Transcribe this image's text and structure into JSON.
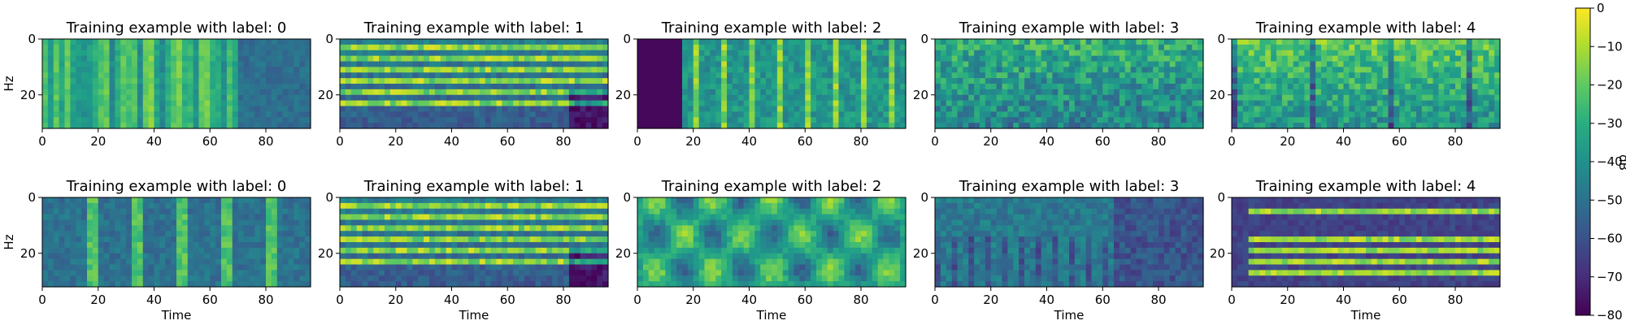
{
  "figure": {
    "colorbar": {
      "label": "dB",
      "ticks": [
        0,
        -10,
        -20,
        -30,
        -40,
        -50,
        -60,
        -70,
        -80
      ],
      "range": [
        -80,
        0
      ],
      "colormap": "viridis"
    }
  },
  "chart_data": [
    {
      "type": "heatmap",
      "title": "Training example with label: 0",
      "ylabel": "Hz",
      "xlabel": "",
      "x_ticks": [
        "0",
        "20",
        "40",
        "60",
        "80"
      ],
      "y_ticks": [
        "0",
        "20"
      ],
      "xlim": [
        0,
        96
      ],
      "ylim": [
        32,
        0
      ],
      "pattern": "broadband"
    },
    {
      "type": "heatmap",
      "title": "Training example with label: 1",
      "ylabel": "",
      "xlabel": "",
      "x_ticks": [
        "0",
        "20",
        "40",
        "60",
        "80"
      ],
      "y_ticks": [
        "0",
        "20"
      ],
      "xlim": [
        0,
        96
      ],
      "ylim": [
        32,
        0
      ],
      "pattern": "tonal"
    },
    {
      "type": "heatmap",
      "title": "Training example with label: 2",
      "ylabel": "",
      "xlabel": "",
      "x_ticks": [
        "0",
        "20",
        "40",
        "60",
        "80"
      ],
      "y_ticks": [
        "0",
        "20"
      ],
      "xlim": [
        0,
        96
      ],
      "ylim": [
        32,
        0
      ],
      "pattern": "silent-start"
    },
    {
      "type": "heatmap",
      "title": "Training example with label: 3",
      "ylabel": "",
      "xlabel": "",
      "x_ticks": [
        "0",
        "20",
        "40",
        "60",
        "80"
      ],
      "y_ticks": [
        "0",
        "20"
      ],
      "xlim": [
        0,
        96
      ],
      "ylim": [
        32,
        0
      ],
      "pattern": "noisy"
    },
    {
      "type": "heatmap",
      "title": "Training example with label: 4",
      "ylabel": "",
      "xlabel": "",
      "x_ticks": [
        "0",
        "20",
        "40",
        "60",
        "80"
      ],
      "y_ticks": [
        "0",
        "20"
      ],
      "xlim": [
        0,
        96
      ],
      "ylim": [
        32,
        0
      ],
      "pattern": "bright"
    },
    {
      "type": "heatmap",
      "title": "Training example with label: 0",
      "ylabel": "Hz",
      "xlabel": "Time",
      "x_ticks": [
        "0",
        "20",
        "40",
        "60",
        "80"
      ],
      "y_ticks": [
        "0",
        "20"
      ],
      "xlim": [
        0,
        96
      ],
      "ylim": [
        32,
        0
      ],
      "pattern": "pulses"
    },
    {
      "type": "heatmap",
      "title": "Training example with label: 1",
      "ylabel": "",
      "xlabel": "Time",
      "x_ticks": [
        "0",
        "20",
        "40",
        "60",
        "80"
      ],
      "y_ticks": [
        "0",
        "20"
      ],
      "xlim": [
        0,
        96
      ],
      "ylim": [
        32,
        0
      ],
      "pattern": "tonal"
    },
    {
      "type": "heatmap",
      "title": "Training example with label: 2",
      "ylabel": "",
      "xlabel": "Time",
      "x_ticks": [
        "0",
        "20",
        "40",
        "60",
        "80"
      ],
      "y_ticks": [
        "0",
        "20"
      ],
      "xlim": [
        0,
        96
      ],
      "ylim": [
        32,
        0
      ],
      "pattern": "blobs"
    },
    {
      "type": "heatmap",
      "title": "Training example with label: 3",
      "ylabel": "",
      "xlabel": "Time",
      "x_ticks": [
        "0",
        "20",
        "40",
        "60",
        "80"
      ],
      "y_ticks": [
        "0",
        "20"
      ],
      "xlim": [
        0,
        96
      ],
      "ylim": [
        32,
        0
      ],
      "pattern": "dark-stripes"
    },
    {
      "type": "heatmap",
      "title": "Training example with label: 4",
      "ylabel": "",
      "xlabel": "Time",
      "x_ticks": [
        "0",
        "20",
        "40",
        "60",
        "80"
      ],
      "y_ticks": [
        "0",
        "20"
      ],
      "xlim": [
        0,
        96
      ],
      "ylim": [
        32,
        0
      ],
      "pattern": "horizontal-bands"
    }
  ]
}
